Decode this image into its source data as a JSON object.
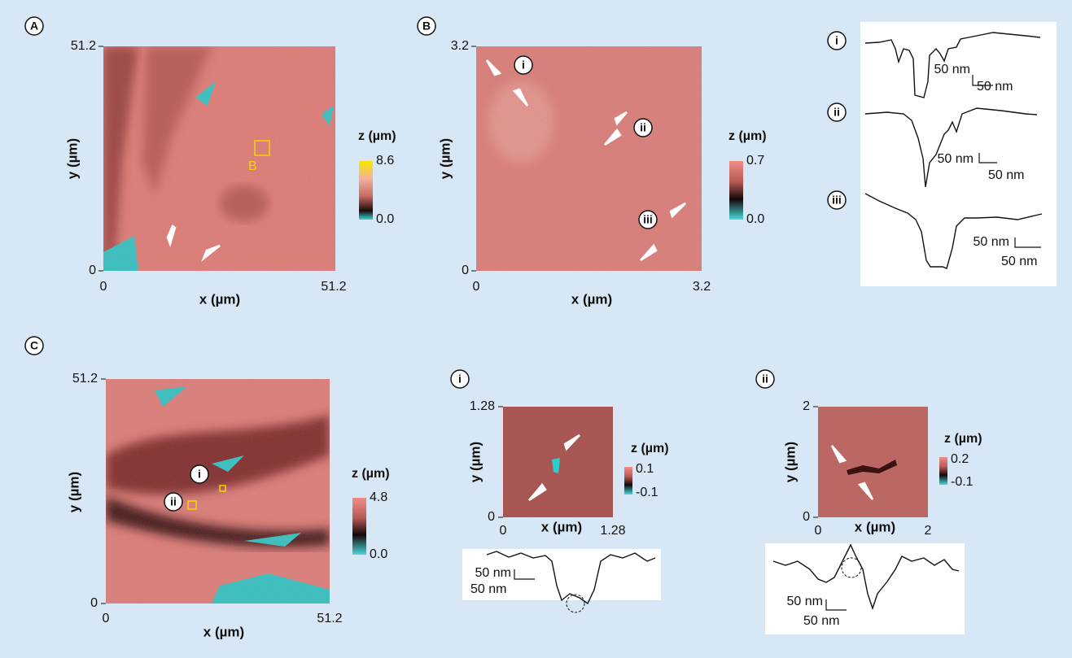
{
  "panel_a": {
    "label": "A",
    "x_axis": {
      "label": "x (µm)",
      "ticks": [
        "0",
        "51.2"
      ]
    },
    "y_axis": {
      "label": "y (µm)",
      "ticks": [
        "0",
        "51.2"
      ]
    },
    "colorbar": {
      "title": "z (µm)",
      "max": "8.6",
      "min": "0.0"
    },
    "region_label": "B"
  },
  "panel_b": {
    "label": "B",
    "x_axis": {
      "label": "x (µm)",
      "ticks": [
        "0",
        "3.2"
      ]
    },
    "y_axis": {
      "label": "y (µm)",
      "ticks": [
        "0",
        "3.2"
      ]
    },
    "colorbar": {
      "title": "z (µm)",
      "max": "0.7",
      "min": "0.0"
    },
    "markers": [
      "i",
      "ii",
      "iii"
    ]
  },
  "panel_b_profiles": [
    {
      "label": "i",
      "scale_vertical": "50 nm",
      "scale_horizontal": "50 nm"
    },
    {
      "label": "ii",
      "scale_vertical": "50 nm",
      "scale_horizontal": "50 nm"
    },
    {
      "label": "iii",
      "scale_vertical": "50 nm",
      "scale_horizontal": "50 nm"
    }
  ],
  "panel_c": {
    "label": "C",
    "x_axis": {
      "label": "x (µm)",
      "ticks": [
        "0",
        "51.2"
      ]
    },
    "y_axis": {
      "label": "y (µm)",
      "ticks": [
        "0",
        "51.2"
      ]
    },
    "colorbar": {
      "title": "z (µm)",
      "max": "4.8",
      "min": "0.0"
    },
    "markers": [
      "i",
      "ii"
    ]
  },
  "panel_c_insets": [
    {
      "label": "i",
      "x_axis": {
        "label": "x (µm)",
        "ticks": [
          "0",
          "1.28"
        ]
      },
      "y_axis": {
        "label": "y (µm)",
        "ticks": [
          "0",
          "1.28"
        ]
      },
      "colorbar": {
        "title": "z (µm)",
        "max": "0.1",
        "min": "-0.1"
      },
      "profile": {
        "scale_vertical": "50 nm",
        "scale_horizontal": "50 nm"
      }
    },
    {
      "label": "ii",
      "x_axis": {
        "label": "x (µm)",
        "ticks": [
          "0",
          "2"
        ]
      },
      "y_axis": {
        "label": "y (µm)",
        "ticks": [
          "0",
          "2"
        ]
      },
      "colorbar": {
        "title": "z (µm)",
        "max": "0.2",
        "min": "-0.1"
      },
      "profile": {
        "scale_vertical": "50 nm",
        "scale_horizontal": "50 nm"
      }
    }
  ]
}
